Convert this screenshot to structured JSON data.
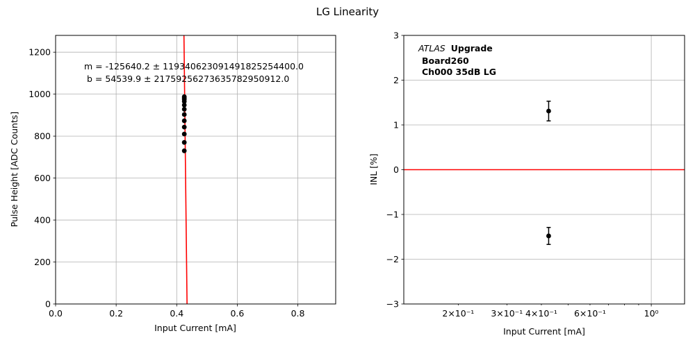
{
  "suptitle": "LG Linearity",
  "chart_data": [
    {
      "type": "scatter",
      "title": "",
      "xlabel": "Input Current [mA]",
      "ylabel": "Pulse Height [ADC Counts]",
      "xlim": [
        0.0,
        0.925
      ],
      "ylim": [
        0,
        1280
      ],
      "x_scale": "linear",
      "xticks": [
        0.0,
        0.2,
        0.4,
        0.6,
        0.8
      ],
      "xtick_labels": [
        "0.0",
        "0.2",
        "0.4",
        "0.6",
        "0.8"
      ],
      "yticks": [
        0,
        200,
        400,
        600,
        800,
        1000,
        1200
      ],
      "ytick_labels": [
        "0",
        "200",
        "400",
        "600",
        "800",
        "1000",
        "1200"
      ],
      "grid": true,
      "series": [
        {
          "kind": "points",
          "color": "#000000",
          "x": [
            0.425,
            0.425,
            0.425,
            0.425,
            0.425,
            0.425,
            0.425,
            0.425,
            0.425,
            0.425,
            0.425,
            0.425
          ],
          "y": [
            730,
            770,
            810,
            843,
            873,
            903,
            928,
            948,
            965,
            975,
            982,
            988
          ]
        },
        {
          "kind": "fit_line",
          "color": "#ff0000",
          "slope": -125640.2,
          "intercept": 54539.9
        }
      ],
      "annotations": [
        "m = -125640.2 ± 1193406230914918252544 00.0",
        " b = 54539.9 ± 217592562736357829509 12.0"
      ]
    },
    {
      "type": "scatter",
      "title": "",
      "xlabel": "Input Current [mA]",
      "ylabel": "INL [%]",
      "xlim": [
        0.127,
        1.32
      ],
      "ylim": [
        -3,
        3
      ],
      "x_scale": "log",
      "xticks": [
        0.2,
        0.3,
        0.4,
        0.6,
        1.0
      ],
      "xtick_labels": [
        "2×10⁻¹",
        "3×10⁻¹",
        "4×10⁻¹",
        "6×10⁻¹",
        "10⁰"
      ],
      "yticks": [
        -3,
        -2,
        -1,
        0,
        1,
        2,
        3
      ],
      "ytick_labels": [
        "−3",
        "−2",
        "−1",
        "0",
        "1",
        "2",
        "3"
      ],
      "grid": true,
      "series": [
        {
          "kind": "errorbar_points",
          "color": "#000000",
          "x": [
            0.425,
            0.425
          ],
          "y": [
            1.31,
            -1.48
          ],
          "yerr": [
            0.22,
            0.19
          ]
        },
        {
          "kind": "hline",
          "color": "#ff0000",
          "y": 0
        }
      ],
      "annotations": [
        "ATLAS",
        "Upgrade",
        "Board260",
        "Ch000 35dB LG"
      ]
    }
  ]
}
